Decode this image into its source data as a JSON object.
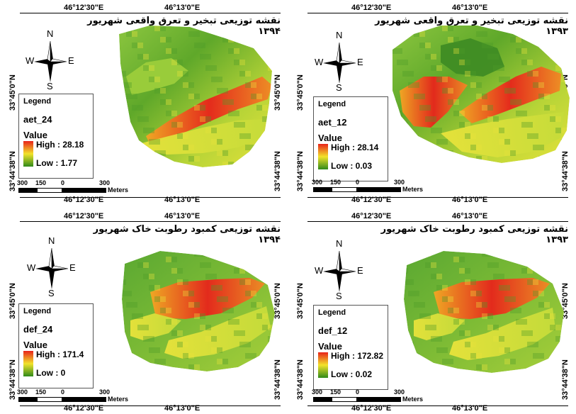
{
  "colors": {
    "ramp_high": "#e8231b",
    "ramp_mid": "#f2e32a",
    "ramp_low": "#2f8a1a",
    "background": "#ffffff"
  },
  "icons": {
    "compass": "north-arrow-icon"
  },
  "compass": {
    "n": "N",
    "s": "S",
    "e": "E",
    "w": "W"
  },
  "coords": {
    "top_left": "46°12'30\"E",
    "top_right": "46°13'0\"E",
    "bottom_left": "46°12'30\"E",
    "bottom_right": "46°13'0\"E",
    "left_upper": "33°45'0\"N",
    "left_lower": "33°44'38\"N",
    "right_upper": "33°45'0\"N",
    "right_lower": "33°44'38\"N"
  },
  "scale": {
    "l0": "300",
    "l1": "150",
    "l2": "0",
    "l3": "300",
    "units": "Meters"
  },
  "panels": [
    {
      "id": "aet-1394",
      "title": "نقشه توزیعی تبخیر و تعرق واقعی شهریور ۱۳۹۴",
      "legend": {
        "heading": "Legend",
        "layer": "aet_24",
        "value_label": "Value",
        "high": "High : 28.18",
        "low": "Low : 1.77"
      }
    },
    {
      "id": "aet-1393",
      "title": "نقشه توزیعی تبخیر و تعرق واقعی شهریور ۱۳۹۳",
      "legend": {
        "heading": "Legend",
        "layer": "aet_12",
        "value_label": "Value",
        "high": "High : 28.14",
        "low": "Low : 0.03"
      }
    },
    {
      "id": "def-1394",
      "title": "نقشه توزیعی کمبود رطوبت خاک شهریور ۱۳۹۴",
      "legend": {
        "heading": "Legend",
        "layer": "def_24",
        "value_label": "Value",
        "high": "High : 171.4",
        "low": "Low : 0"
      }
    },
    {
      "id": "def-1393",
      "title": "نقشه توزیعی کمبود رطوبت خاک شهریور ۱۳۹۳",
      "legend": {
        "heading": "Legend",
        "layer": "def_12",
        "value_label": "Value",
        "high": "High : 172.82",
        "low": "Low : 0.02"
      }
    }
  ]
}
